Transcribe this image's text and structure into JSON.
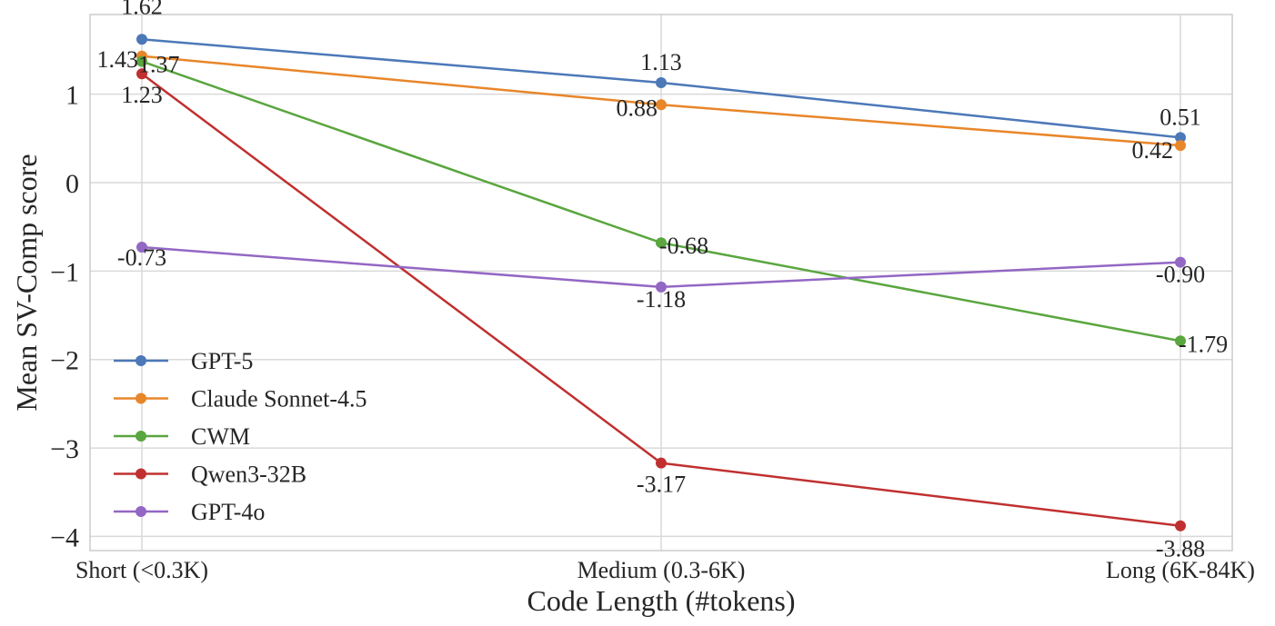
{
  "chart_data": {
    "type": "line",
    "title": "",
    "xlabel": "Code Length (#tokens)",
    "ylabel": "Mean SV-Comp score",
    "categories": [
      "Short (<0.3K)",
      "Medium (0.3-6K)",
      "Long (6K-84K)"
    ],
    "ylim": [
      -4.16,
      1.9
    ],
    "yticks": [
      1,
      0,
      -1,
      -2,
      -3,
      -4
    ],
    "ytick_labels": [
      "1",
      "0",
      "−1",
      "−2",
      "−3",
      "−4"
    ],
    "grid": true,
    "legend_position": "lower-left",
    "series": [
      {
        "name": "GPT-5",
        "color": "#4c78b8",
        "values": [
          1.62,
          1.13,
          0.51
        ],
        "labels": [
          "1.62",
          "1.13",
          "0.51"
        ]
      },
      {
        "name": "Claude Sonnet-4.5",
        "color": "#e8862a",
        "values": [
          1.43,
          0.88,
          0.42
        ],
        "labels": [
          "1.43",
          "0.88",
          "0.42"
        ]
      },
      {
        "name": "CWM",
        "color": "#5aa63f",
        "values": [
          1.37,
          -0.68,
          -1.79
        ],
        "labels": [
          "1.37",
          "-0.68",
          "-1.79"
        ]
      },
      {
        "name": "Qwen3-32B",
        "color": "#c03030",
        "values": [
          1.23,
          -3.17,
          -3.88
        ],
        "labels": [
          "1.23",
          "-3.17",
          "-3.88"
        ]
      },
      {
        "name": "GPT-4o",
        "color": "#9367c4",
        "values": [
          -0.73,
          -1.18,
          -0.9
        ],
        "labels": [
          "-0.73",
          "-1.18",
          "-0.90"
        ]
      }
    ]
  }
}
